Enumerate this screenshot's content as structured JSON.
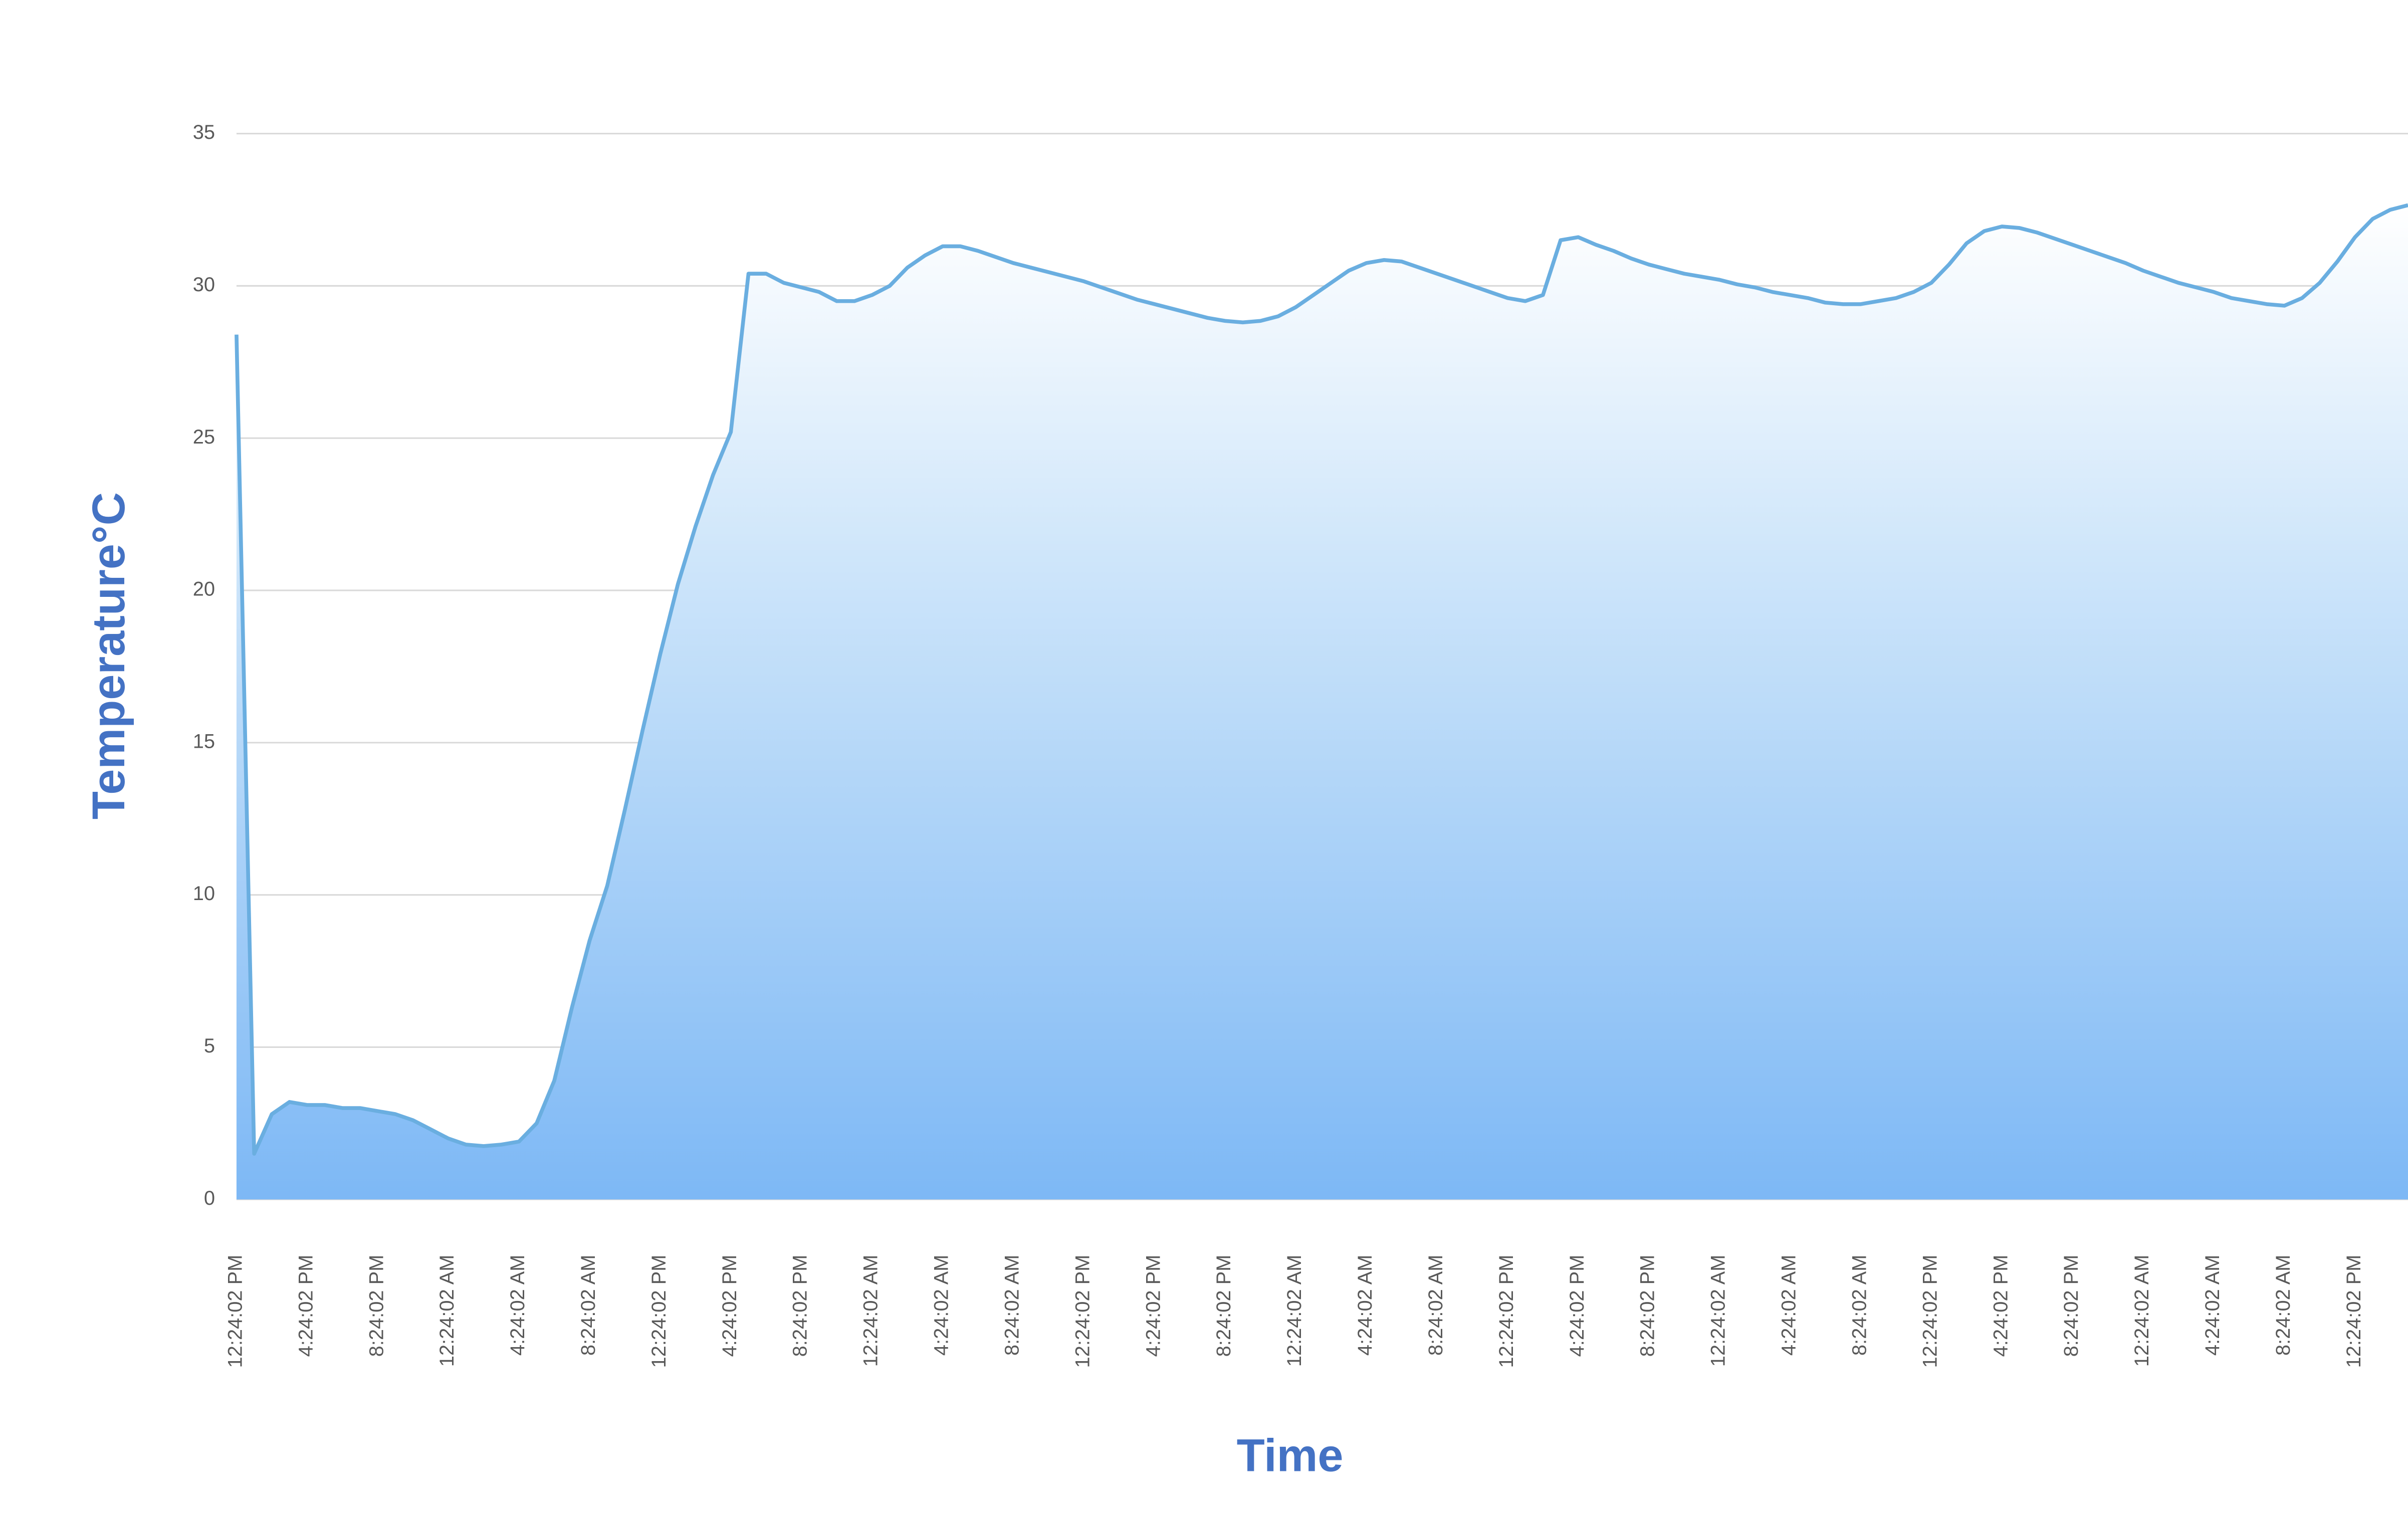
{
  "chart_data": {
    "type": "area",
    "y_axis_label": "Temperature°C",
    "x_axis_label": "Time",
    "categories": [
      "12:24:02 PM",
      null,
      null,
      null,
      "4:24:02 PM",
      null,
      null,
      null,
      "8:24:02 PM",
      null,
      null,
      null,
      "12:24:02 AM",
      null,
      null,
      null,
      "4:24:02 AM",
      null,
      null,
      null,
      "8:24:02 AM",
      null,
      null,
      null,
      "12:24:02 PM",
      null,
      null,
      null,
      "4:24:02 PM",
      null,
      null,
      null,
      "8:24:02 PM",
      null,
      null,
      null,
      "12:24:02 AM",
      null,
      null,
      null,
      "4:24:02 AM",
      null,
      null,
      null,
      "8:24:02 AM",
      null,
      null,
      null,
      "12:24:02 PM",
      null,
      null,
      null,
      "4:24:02 PM",
      null,
      null,
      null,
      "8:24:02 PM",
      null,
      null,
      null,
      "12:24:02 AM",
      null,
      null,
      null,
      "4:24:02 AM",
      null,
      null,
      null,
      "8:24:02 AM",
      null,
      null,
      null,
      "12:24:02 PM",
      null,
      null,
      null,
      "4:24:02 PM",
      null,
      null,
      null,
      "8:24:02 PM",
      null,
      null,
      null,
      "12:24:02 AM",
      null,
      null,
      null,
      "4:24:02 AM",
      null,
      null,
      null,
      "8:24:02 AM",
      null,
      null,
      null,
      "12:24:02 PM",
      null,
      null,
      null,
      "4:24:02 PM",
      null,
      null,
      null,
      "8:24:02 PM",
      null,
      null,
      null,
      "12:24:02 AM",
      null,
      null,
      null,
      "4:24:02 AM",
      null,
      null,
      null,
      "8:24:02 AM",
      null,
      null,
      null,
      "12:24:02 PM",
      null,
      null,
      null
    ],
    "values": [
      28.4,
      1.5,
      2.8,
      3.2,
      3.1,
      3.1,
      3.0,
      3.0,
      2.9,
      2.8,
      2.6,
      2.3,
      2.0,
      1.8,
      1.75,
      1.8,
      1.9,
      2.5,
      3.9,
      6.3,
      8.5,
      10.3,
      12.8,
      15.4,
      17.9,
      20.2,
      22.1,
      23.8,
      25.2,
      30.4,
      30.4,
      30.1,
      29.95,
      29.8,
      29.5,
      29.5,
      29.7,
      30.0,
      30.6,
      31.0,
      31.3,
      31.3,
      31.15,
      30.95,
      30.75,
      30.6,
      30.45,
      30.3,
      30.15,
      29.95,
      29.75,
      29.55,
      29.4,
      29.25,
      29.1,
      28.95,
      28.85,
      28.8,
      28.85,
      29.0,
      29.3,
      29.7,
      30.1,
      30.5,
      30.75,
      30.85,
      30.8,
      30.6,
      30.4,
      30.2,
      30.0,
      29.8,
      29.6,
      29.5,
      29.7,
      31.5,
      31.6,
      31.35,
      31.15,
      30.9,
      30.7,
      30.55,
      30.4,
      30.3,
      30.2,
      30.05,
      29.95,
      29.8,
      29.7,
      29.6,
      29.45,
      29.4,
      29.4,
      29.5,
      29.6,
      29.8,
      30.1,
      30.7,
      31.4,
      31.8,
      31.95,
      31.9,
      31.75,
      31.55,
      31.35,
      31.15,
      30.95,
      30.75,
      30.5,
      30.3,
      30.1,
      29.95,
      29.8,
      29.6,
      29.5,
      29.4,
      29.35,
      29.6,
      30.1,
      30.8,
      31.6,
      32.2,
      32.5,
      32.65
    ],
    "color": "#6aaee0",
    "ylim": [
      0,
      35
    ],
    "yticks": [
      0,
      5,
      10,
      15,
      20,
      25,
      30,
      35
    ],
    "grid": true
  }
}
